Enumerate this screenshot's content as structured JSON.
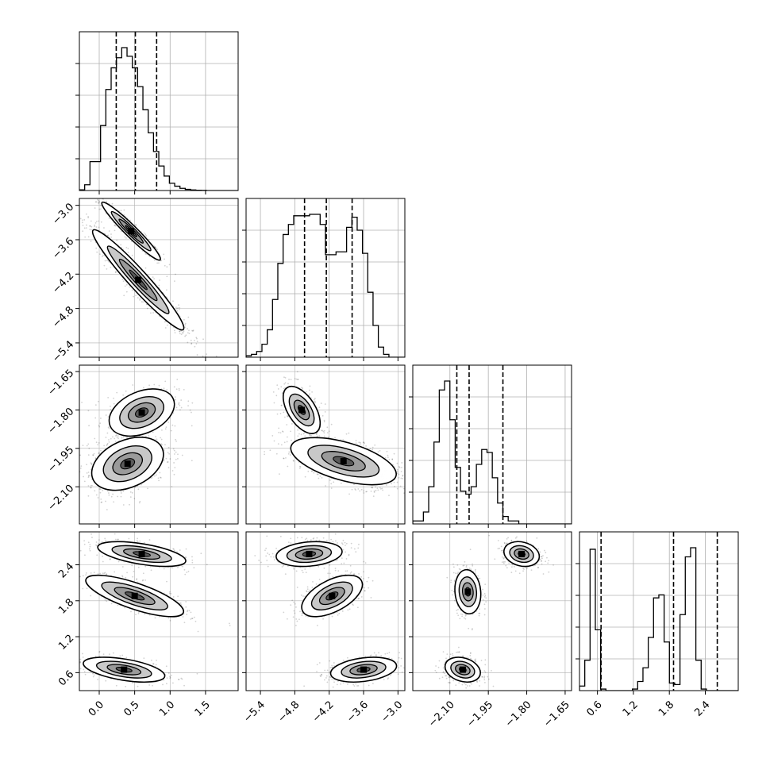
{
  "chart_data": {
    "type": "corner",
    "title": "",
    "grid": true,
    "parameters": [
      {
        "range": [
          -0.28,
          1.96
        ],
        "ticks": [
          0.0,
          0.5,
          1.0,
          1.5
        ],
        "tick_labels": [
          "0.0",
          "0.5",
          "1.0",
          "1.5"
        ],
        "quantiles": [
          0.24,
          0.51,
          0.81
        ],
        "histogram": {
          "start": -0.28,
          "bin_width": 0.0747,
          "counts": [
            0.005,
            0.04,
            0.2,
            0.2,
            0.45,
            0.7,
            0.85,
            0.92,
            0.99,
            0.93,
            0.85,
            0.72,
            0.56,
            0.4,
            0.27,
            0.17,
            0.1,
            0.05,
            0.03,
            0.015,
            0.008,
            0.004,
            0.002,
            0.001,
            0,
            0,
            0,
            0,
            0,
            0
          ]
        }
      },
      {
        "range": [
          -5.65,
          -2.88
        ],
        "ticks": [
          -5.4,
          -4.8,
          -4.2,
          -3.6,
          -3.0
        ],
        "tick_labels": [
          "−5.4",
          "−4.8",
          "−4.2",
          "−3.6",
          "−3.0"
        ],
        "quantiles": [
          -4.63,
          -4.25,
          -3.8
        ],
        "histogram": {
          "start": -5.65,
          "bin_width": 0.0923,
          "counts": [
            0.01,
            0.02,
            0.04,
            0.09,
            0.19,
            0.4,
            0.65,
            0.85,
            0.92,
            0.98,
            0.98,
            0.98,
            0.99,
            0.99,
            0.92,
            0.71,
            0.71,
            0.73,
            0.73,
            0.9,
            0.97,
            0.88,
            0.72,
            0.45,
            0.22,
            0.07,
            0.02,
            0,
            0,
            0
          ]
        }
      },
      {
        "range": [
          -2.245,
          -1.625
        ],
        "ticks": [
          -2.1,
          -1.95,
          -1.8,
          -1.65
        ],
        "tick_labels": [
          "−2.10",
          "−1.95",
          "−1.80",
          "−1.65"
        ],
        "quantiles": [
          -2.073,
          -2.025,
          -1.893
        ],
        "histogram": {
          "start": -2.245,
          "bin_width": 0.0207,
          "counts": [
            0.02,
            0.02,
            0.08,
            0.25,
            0.55,
            0.9,
            0.96,
            0.7,
            0.38,
            0.22,
            0.2,
            0.25,
            0.4,
            0.5,
            0.48,
            0.31,
            0.14,
            0.05,
            0.02,
            0.02,
            0,
            0,
            0,
            0,
            0,
            0,
            0,
            0,
            0,
            0
          ]
        }
      },
      {
        "range": [
          0.3,
          2.95
        ],
        "ticks": [
          0.6,
          1.2,
          1.8,
          2.4
        ],
        "tick_labels": [
          "0.6",
          "1.2",
          "1.8",
          "2.4"
        ],
        "quantiles": [
          0.66,
          1.87,
          2.6
        ],
        "histogram": {
          "start": 0.3,
          "bin_width": 0.0883,
          "counts": [
            0.03,
            0.2,
            0.93,
            0.4,
            0.01,
            0,
            0,
            0,
            0,
            0,
            0.01,
            0.06,
            0.15,
            0.35,
            0.61,
            0.63,
            0.32,
            0.05,
            0.04,
            0.5,
            0.88,
            0.94,
            0.2,
            0.01,
            0,
            0,
            0,
            0,
            0,
            0
          ]
        }
      }
    ],
    "pairs": [
      {
        "row": 1,
        "col": 0,
        "modes": [
          {
            "x": 0.45,
            "y": -3.45,
            "sx": 0.18,
            "sy": 0.22,
            "rho": -0.96,
            "w": 0.35
          },
          {
            "x": 0.55,
            "y": -4.3,
            "sx": 0.28,
            "sy": 0.38,
            "rho": -0.96,
            "w": 0.65
          }
        ]
      },
      {
        "row": 2,
        "col": 0,
        "modes": [
          {
            "x": 0.6,
            "y": -1.81,
            "sx": 0.2,
            "sy": 0.04,
            "rho": 0.35,
            "w": 0.4
          },
          {
            "x": 0.4,
            "y": -2.01,
            "sx": 0.22,
            "sy": 0.045,
            "rho": 0.35,
            "w": 0.6
          }
        ]
      },
      {
        "row": 2,
        "col": 1,
        "modes": [
          {
            "x": -4.68,
            "y": -1.8,
            "sx": 0.14,
            "sy": 0.04,
            "rho": -0.55,
            "w": 0.35
          },
          {
            "x": -3.95,
            "y": -2.0,
            "sx": 0.4,
            "sy": 0.04,
            "rho": -0.55,
            "w": 0.65
          }
        ]
      },
      {
        "row": 3,
        "col": 0,
        "modes": [
          {
            "x": 0.6,
            "y": 2.58,
            "sx": 0.27,
            "sy": 0.09,
            "rho": -0.55,
            "w": 0.33
          },
          {
            "x": 0.5,
            "y": 1.88,
            "sx": 0.3,
            "sy": 0.15,
            "rho": -0.75,
            "w": 0.33
          },
          {
            "x": 0.35,
            "y": 0.65,
            "sx": 0.25,
            "sy": 0.09,
            "rho": -0.5,
            "w": 0.34
          }
        ]
      },
      {
        "row": 3,
        "col": 1,
        "modes": [
          {
            "x": -4.55,
            "y": 2.58,
            "sx": 0.25,
            "sy": 0.09,
            "rho": 0.2,
            "w": 0.33
          },
          {
            "x": -4.15,
            "y": 1.88,
            "sx": 0.23,
            "sy": 0.15,
            "rho": 0.55,
            "w": 0.33
          },
          {
            "x": -3.6,
            "y": 0.65,
            "sx": 0.25,
            "sy": 0.09,
            "rho": 0.3,
            "w": 0.34
          }
        ]
      },
      {
        "row": 3,
        "col": 2,
        "modes": [
          {
            "x": -1.82,
            "y": 2.58,
            "sx": 0.03,
            "sy": 0.09,
            "rho": -0.2,
            "w": 0.33
          },
          {
            "x": -2.03,
            "y": 1.95,
            "sx": 0.022,
            "sy": 0.16,
            "rho": -0.1,
            "w": 0.33
          },
          {
            "x": -2.05,
            "y": 0.65,
            "sx": 0.03,
            "sy": 0.09,
            "rho": -0.25,
            "w": 0.34
          }
        ]
      }
    ]
  }
}
